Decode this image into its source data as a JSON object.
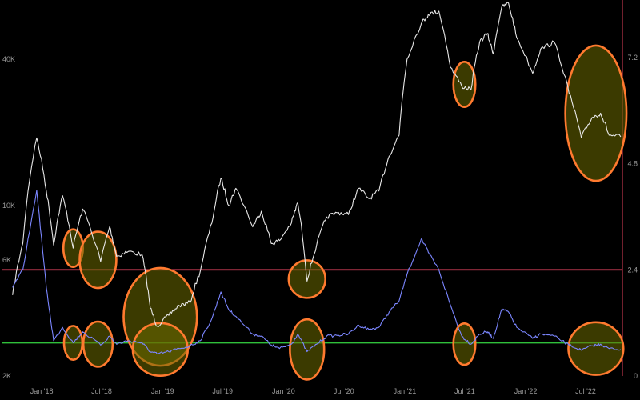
{
  "chart_data": {
    "type": "line",
    "background": "#000000",
    "x_range": [
      "2017-10-01",
      "2022-10-20"
    ],
    "x_ticks": [
      {
        "date": "2018-01-01",
        "label": "Jan '18"
      },
      {
        "date": "2018-07-01",
        "label": "Jul '18"
      },
      {
        "date": "2019-01-01",
        "label": "Jan '19"
      },
      {
        "date": "2019-07-01",
        "label": "Jul '19"
      },
      {
        "date": "2020-01-01",
        "label": "Jan '20"
      },
      {
        "date": "2020-07-01",
        "label": "Jul '20"
      },
      {
        "date": "2021-01-01",
        "label": "Jan '21"
      },
      {
        "date": "2021-07-01",
        "label": "Jul '21"
      },
      {
        "date": "2022-01-01",
        "label": "Jan '22"
      },
      {
        "date": "2022-07-01",
        "label": "Jul '22"
      }
    ],
    "left_axis": {
      "scale": "log",
      "range": [
        2000,
        70000
      ],
      "ticks": [
        {
          "value": 2000,
          "label": "2K"
        },
        {
          "value": 6000,
          "label": "6K"
        },
        {
          "value": 10000,
          "label": "10K"
        },
        {
          "value": 40000,
          "label": "40K"
        }
      ]
    },
    "right_axis": {
      "scale": "linear",
      "range": [
        0,
        8.5
      ],
      "color": "#e0415a",
      "ticks": [
        {
          "value": 0,
          "label": "0"
        },
        {
          "value": 2.4,
          "label": "2.4"
        },
        {
          "value": 4.8,
          "label": "4.8"
        },
        {
          "value": 7.2,
          "label": "7.2"
        }
      ]
    },
    "series": [
      {
        "axis": "left",
        "color": "#e8e8e8",
        "points": [
          [
            "2017-10-05",
            4300
          ],
          [
            "2017-11-05",
            7000
          ],
          [
            "2017-12-17",
            19000
          ],
          [
            "2018-01-15",
            11500
          ],
          [
            "2018-02-06",
            6900
          ],
          [
            "2018-03-05",
            11000
          ],
          [
            "2018-04-06",
            6700
          ],
          [
            "2018-05-05",
            9700
          ],
          [
            "2018-06-28",
            5900
          ],
          [
            "2018-07-25",
            8200
          ],
          [
            "2018-08-15",
            6200
          ],
          [
            "2018-09-20",
            6500
          ],
          [
            "2018-10-31",
            6300
          ],
          [
            "2018-11-25",
            3800
          ],
          [
            "2018-12-15",
            3200
          ],
          [
            "2019-01-20",
            3550
          ],
          [
            "2019-02-20",
            3900
          ],
          [
            "2019-03-25",
            4000
          ],
          [
            "2019-04-25",
            5400
          ],
          [
            "2019-05-30",
            8500
          ],
          [
            "2019-06-26",
            13000
          ],
          [
            "2019-07-20",
            10000
          ],
          [
            "2019-08-10",
            11800
          ],
          [
            "2019-09-30",
            8200
          ],
          [
            "2019-10-26",
            9500
          ],
          [
            "2019-11-25",
            7000
          ],
          [
            "2019-12-20",
            7200
          ],
          [
            "2020-01-25",
            8500
          ],
          [
            "2020-02-13",
            10300
          ],
          [
            "2020-03-12",
            4900
          ],
          [
            "2020-04-10",
            6900
          ],
          [
            "2020-05-10",
            9000
          ],
          [
            "2020-06-15",
            9400
          ],
          [
            "2020-07-15",
            9200
          ],
          [
            "2020-08-15",
            11800
          ],
          [
            "2020-09-15",
            10700
          ],
          [
            "2020-10-15",
            11500
          ],
          [
            "2020-11-15",
            16000
          ],
          [
            "2020-12-15",
            19500
          ],
          [
            "2021-01-08",
            40000
          ],
          [
            "2021-02-20",
            56000
          ],
          [
            "2021-03-13",
            61000
          ],
          [
            "2021-04-14",
            63000
          ],
          [
            "2021-05-19",
            37000
          ],
          [
            "2021-06-22",
            31000
          ],
          [
            "2021-07-20",
            30000
          ],
          [
            "2021-08-15",
            47000
          ],
          [
            "2021-09-07",
            51000
          ],
          [
            "2021-09-25",
            42000
          ],
          [
            "2021-10-20",
            65000
          ],
          [
            "2021-11-10",
            68000
          ],
          [
            "2021-12-05",
            49000
          ],
          [
            "2022-01-22",
            35000
          ],
          [
            "2022-02-15",
            44000
          ],
          [
            "2022-03-28",
            47000
          ],
          [
            "2022-05-12",
            29000
          ],
          [
            "2022-06-18",
            19000
          ],
          [
            "2022-07-20",
            23000
          ],
          [
            "2022-08-15",
            24000
          ],
          [
            "2022-09-10",
            19500
          ],
          [
            "2022-10-15",
            19200
          ]
        ]
      },
      {
        "axis": "right",
        "color": "#7b86ff",
        "points": [
          [
            "2017-10-05",
            2.0
          ],
          [
            "2017-11-05",
            2.4
          ],
          [
            "2017-12-17",
            4.2
          ],
          [
            "2018-01-15",
            2.0
          ],
          [
            "2018-02-06",
            0.8
          ],
          [
            "2018-03-05",
            1.1
          ],
          [
            "2018-04-06",
            0.75
          ],
          [
            "2018-05-05",
            1.0
          ],
          [
            "2018-06-28",
            0.7
          ],
          [
            "2018-07-25",
            0.9
          ],
          [
            "2018-08-15",
            0.72
          ],
          [
            "2018-09-20",
            0.8
          ],
          [
            "2018-10-31",
            0.75
          ],
          [
            "2018-11-25",
            0.55
          ],
          [
            "2018-12-15",
            0.5
          ],
          [
            "2019-01-20",
            0.55
          ],
          [
            "2019-02-20",
            0.62
          ],
          [
            "2019-03-25",
            0.68
          ],
          [
            "2019-04-25",
            0.8
          ],
          [
            "2019-05-30",
            1.3
          ],
          [
            "2019-06-26",
            1.9
          ],
          [
            "2019-07-20",
            1.5
          ],
          [
            "2019-08-10",
            1.35
          ],
          [
            "2019-09-30",
            0.95
          ],
          [
            "2019-10-26",
            0.9
          ],
          [
            "2019-11-25",
            0.7
          ],
          [
            "2019-12-20",
            0.62
          ],
          [
            "2020-01-25",
            0.72
          ],
          [
            "2020-02-13",
            0.95
          ],
          [
            "2020-03-12",
            0.55
          ],
          [
            "2020-04-10",
            0.72
          ],
          [
            "2020-05-10",
            0.9
          ],
          [
            "2020-06-15",
            0.92
          ],
          [
            "2020-07-15",
            0.95
          ],
          [
            "2020-08-15",
            1.15
          ],
          [
            "2020-09-15",
            1.05
          ],
          [
            "2020-10-15",
            1.1
          ],
          [
            "2020-11-15",
            1.45
          ],
          [
            "2020-12-15",
            1.7
          ],
          [
            "2021-01-08",
            2.3
          ],
          [
            "2021-02-20",
            3.1
          ],
          [
            "2021-03-13",
            2.8
          ],
          [
            "2021-04-14",
            2.4
          ],
          [
            "2021-05-19",
            1.6
          ],
          [
            "2021-06-22",
            0.9
          ],
          [
            "2021-07-20",
            0.72
          ],
          [
            "2021-08-15",
            0.95
          ],
          [
            "2021-09-07",
            1.0
          ],
          [
            "2021-09-25",
            0.85
          ],
          [
            "2021-10-20",
            1.5
          ],
          [
            "2021-11-10",
            1.45
          ],
          [
            "2021-12-05",
            1.1
          ],
          [
            "2022-01-22",
            0.85
          ],
          [
            "2022-02-15",
            0.95
          ],
          [
            "2022-03-28",
            0.9
          ],
          [
            "2022-05-12",
            0.7
          ],
          [
            "2022-06-18",
            0.58
          ],
          [
            "2022-07-20",
            0.68
          ],
          [
            "2022-08-15",
            0.72
          ],
          [
            "2022-09-10",
            0.62
          ],
          [
            "2022-10-15",
            0.6
          ]
        ]
      }
    ],
    "reference_lines": [
      {
        "axis": "right",
        "value": 2.4,
        "color": "#ff4d6d"
      },
      {
        "axis": "right",
        "value": 0.75,
        "color": "#2fbf3a"
      }
    ],
    "annotations": {
      "style": {
        "stroke": "#ff7a2f",
        "fill": "#6b6a00",
        "fill_opacity": 0.55
      },
      "upper": [
        {
          "date": "2018-04-06",
          "value": 6700,
          "rx": 0.016,
          "ry": 0.05
        },
        {
          "date": "2018-06-20",
          "value": 6000,
          "rx": 0.03,
          "ry": 0.075
        },
        {
          "date": "2018-12-25",
          "value": 3500,
          "rx": 0.06,
          "ry": 0.13
        },
        {
          "date": "2020-03-12",
          "value": 5000,
          "rx": 0.03,
          "ry": 0.05
        },
        {
          "date": "2021-06-30",
          "value": 31500,
          "rx": 0.018,
          "ry": 0.06
        },
        {
          "date": "2022-08-01",
          "value": 24000,
          "rx": 0.05,
          "ry": 0.18
        }
      ],
      "lower": [
        {
          "date": "2018-04-06",
          "value": 0.75,
          "rx": 0.015,
          "ry": 0.045
        },
        {
          "date": "2018-06-20",
          "value": 0.72,
          "rx": 0.024,
          "ry": 0.06
        },
        {
          "date": "2018-12-25",
          "value": 0.6,
          "rx": 0.045,
          "ry": 0.07
        },
        {
          "date": "2020-03-12",
          "value": 0.6,
          "rx": 0.028,
          "ry": 0.08
        },
        {
          "date": "2021-06-30",
          "value": 0.72,
          "rx": 0.018,
          "ry": 0.055
        },
        {
          "date": "2022-08-01",
          "value": 0.62,
          "rx": 0.045,
          "ry": 0.07
        }
      ]
    }
  }
}
